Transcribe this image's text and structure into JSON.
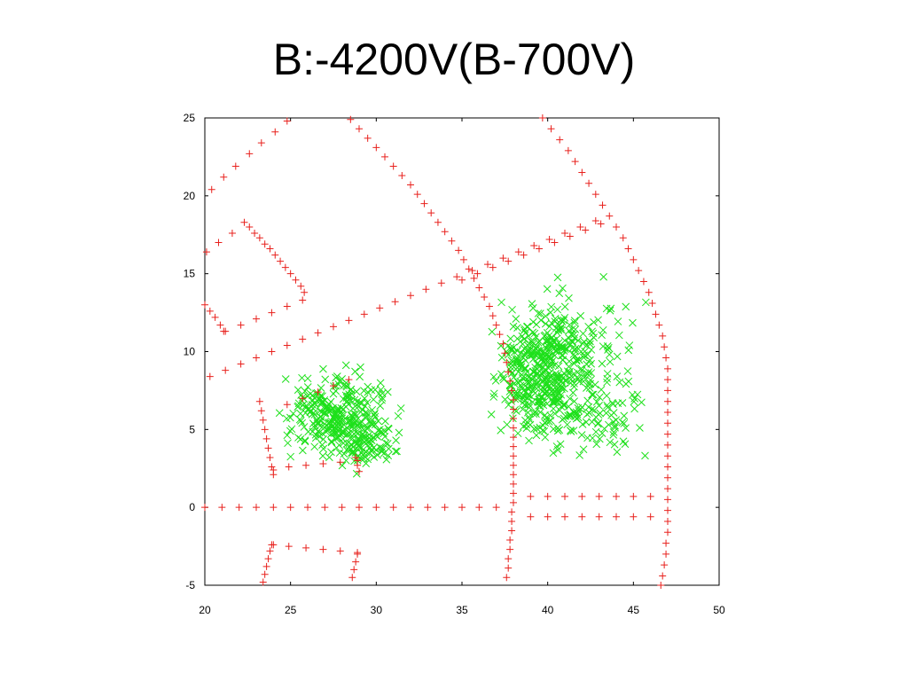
{
  "slide": {
    "title": "B:-4200V(B-700V)"
  },
  "chart_data": {
    "type": "scatter",
    "title": "",
    "xlabel": "",
    "ylabel": "",
    "xlim": [
      20,
      50
    ],
    "ylim": [
      -5,
      25
    ],
    "xticks": [
      "20",
      "25",
      "30",
      "35",
      "40",
      "45",
      "50"
    ],
    "yticks": [
      "-5",
      "0",
      "5",
      "10",
      "15",
      "20",
      "25"
    ],
    "grid": false,
    "legend": "none",
    "series": [
      {
        "marker": "plus",
        "color": "#e8201c",
        "points": [
          [
            20.4,
            20.4
          ],
          [
            21.1,
            21.2
          ],
          [
            21.8,
            21.9
          ],
          [
            22.6,
            22.7
          ],
          [
            23.3,
            23.4
          ],
          [
            24.1,
            24.1
          ],
          [
            24.8,
            24.8
          ],
          [
            20.1,
            16.4
          ],
          [
            20.8,
            17.0
          ],
          [
            21.6,
            17.6
          ],
          [
            22.3,
            18.3
          ],
          [
            22.6,
            18.0
          ],
          [
            22.9,
            17.6
          ],
          [
            23.2,
            17.3
          ],
          [
            23.5,
            16.9
          ],
          [
            23.8,
            16.6
          ],
          [
            24.1,
            16.2
          ],
          [
            24.4,
            15.8
          ],
          [
            24.7,
            15.4
          ],
          [
            25.0,
            15.0
          ],
          [
            25.3,
            14.6
          ],
          [
            25.6,
            14.2
          ],
          [
            25.8,
            13.8
          ],
          [
            20.0,
            13.0
          ],
          [
            20.3,
            12.6
          ],
          [
            20.6,
            12.2
          ],
          [
            20.9,
            11.7
          ],
          [
            21.1,
            11.3
          ],
          [
            20.3,
            8.4
          ],
          [
            21.2,
            8.8
          ],
          [
            22.1,
            9.2
          ],
          [
            23.0,
            9.6
          ],
          [
            23.9,
            10.0
          ],
          [
            24.8,
            10.4
          ],
          [
            25.7,
            10.8
          ],
          [
            26.6,
            11.2
          ],
          [
            27.5,
            11.6
          ],
          [
            28.4,
            12.0
          ],
          [
            29.3,
            12.4
          ],
          [
            30.2,
            12.8
          ],
          [
            31.1,
            13.2
          ],
          [
            32.0,
            13.6
          ],
          [
            32.9,
            14.0
          ],
          [
            33.8,
            14.4
          ],
          [
            34.7,
            14.8
          ],
          [
            35.6,
            15.2
          ],
          [
            36.5,
            15.6
          ],
          [
            37.4,
            16.0
          ],
          [
            38.3,
            16.4
          ],
          [
            39.2,
            16.8
          ],
          [
            40.1,
            17.2
          ],
          [
            41.0,
            17.6
          ],
          [
            41.9,
            18.0
          ],
          [
            42.8,
            18.4
          ],
          [
            21.2,
            11.3
          ],
          [
            22.1,
            11.7
          ],
          [
            23.0,
            12.1
          ],
          [
            23.9,
            12.5
          ],
          [
            24.8,
            12.9
          ],
          [
            25.7,
            13.3
          ],
          [
            35.0,
            14.6
          ],
          [
            35.9,
            15.0
          ],
          [
            36.8,
            15.4
          ],
          [
            37.7,
            15.8
          ],
          [
            38.6,
            16.2
          ],
          [
            39.5,
            16.6
          ],
          [
            40.4,
            17.0
          ],
          [
            41.3,
            17.4
          ],
          [
            42.2,
            17.8
          ],
          [
            43.1,
            18.2
          ],
          [
            24.8,
            6.6
          ],
          [
            25.7,
            7.0
          ],
          [
            26.6,
            7.4
          ],
          [
            27.5,
            7.8
          ],
          [
            28.4,
            8.2
          ],
          [
            24.0,
            2.4
          ],
          [
            24.9,
            2.6
          ],
          [
            25.9,
            2.7
          ],
          [
            26.9,
            2.8
          ],
          [
            27.9,
            2.9
          ],
          [
            28.9,
            3.0
          ],
          [
            23.2,
            6.8
          ],
          [
            23.3,
            6.2
          ],
          [
            23.4,
            5.6
          ],
          [
            23.5,
            5.0
          ],
          [
            23.6,
            4.4
          ],
          [
            23.7,
            3.8
          ],
          [
            23.8,
            3.2
          ],
          [
            23.9,
            2.6
          ],
          [
            24.0,
            2.1
          ],
          [
            28.8,
            3.2
          ],
          [
            28.9,
            2.7
          ],
          [
            29.0,
            2.3
          ],
          [
            20.0,
            0
          ],
          [
            21.0,
            0
          ],
          [
            22.0,
            0
          ],
          [
            23.0,
            0
          ],
          [
            24.0,
            0
          ],
          [
            25.0,
            0
          ],
          [
            26.0,
            0
          ],
          [
            27.0,
            0
          ],
          [
            28.0,
            0
          ],
          [
            29.0,
            0
          ],
          [
            30.0,
            0
          ],
          [
            31.0,
            0
          ],
          [
            32.0,
            0
          ],
          [
            33.0,
            0
          ],
          [
            34.0,
            0
          ],
          [
            35.0,
            0
          ],
          [
            36.0,
            0
          ],
          [
            37.0,
            0
          ],
          [
            39.0,
            0.7
          ],
          [
            40.0,
            0.7
          ],
          [
            41.0,
            0.7
          ],
          [
            42.0,
            0.7
          ],
          [
            43.0,
            0.7
          ],
          [
            44.0,
            0.7
          ],
          [
            45.0,
            0.7
          ],
          [
            46.0,
            0.7
          ],
          [
            39.0,
            -0.6
          ],
          [
            40.0,
            -0.6
          ],
          [
            41.0,
            -0.6
          ],
          [
            42.0,
            -0.6
          ],
          [
            43.0,
            -0.6
          ],
          [
            44.0,
            -0.6
          ],
          [
            45.0,
            -0.6
          ],
          [
            46.0,
            -0.6
          ],
          [
            24.0,
            -2.4
          ],
          [
            24.9,
            -2.5
          ],
          [
            25.9,
            -2.6
          ],
          [
            26.9,
            -2.7
          ],
          [
            27.9,
            -2.8
          ],
          [
            28.9,
            -2.9
          ],
          [
            23.4,
            -4.8
          ],
          [
            23.5,
            -4.3
          ],
          [
            23.6,
            -3.8
          ],
          [
            23.7,
            -3.3
          ],
          [
            23.8,
            -2.8
          ],
          [
            23.9,
            -2.4
          ],
          [
            28.6,
            -4.5
          ],
          [
            28.7,
            -4.0
          ],
          [
            28.8,
            -3.5
          ],
          [
            28.9,
            -3.0
          ],
          [
            28.5,
            24.9
          ],
          [
            29.0,
            24.3
          ],
          [
            29.5,
            23.7
          ],
          [
            30.0,
            23.1
          ],
          [
            30.5,
            22.5
          ],
          [
            31.0,
            21.9
          ],
          [
            31.5,
            21.3
          ],
          [
            32.0,
            20.7
          ],
          [
            32.4,
            20.1
          ],
          [
            32.8,
            19.5
          ],
          [
            33.2,
            18.9
          ],
          [
            33.6,
            18.3
          ],
          [
            34.0,
            17.7
          ],
          [
            34.4,
            17.1
          ],
          [
            34.8,
            16.5
          ],
          [
            35.1,
            15.9
          ],
          [
            35.4,
            15.3
          ],
          [
            35.7,
            14.7
          ],
          [
            36.0,
            14.1
          ],
          [
            36.3,
            13.5
          ],
          [
            36.6,
            12.9
          ],
          [
            36.8,
            12.3
          ],
          [
            37.0,
            11.7
          ],
          [
            37.2,
            11.1
          ],
          [
            37.4,
            10.5
          ],
          [
            37.5,
            9.9
          ],
          [
            37.6,
            9.3
          ],
          [
            37.7,
            8.7
          ],
          [
            37.8,
            8.1
          ],
          [
            37.9,
            7.5
          ],
          [
            38.0,
            6.9
          ],
          [
            38.0,
            6.3
          ],
          [
            38.0,
            5.7
          ],
          [
            38.0,
            5.1
          ],
          [
            38.0,
            4.5
          ],
          [
            38.0,
            3.9
          ],
          [
            38.0,
            3.3
          ],
          [
            38.0,
            2.7
          ],
          [
            38.0,
            2.1
          ],
          [
            38.0,
            1.5
          ],
          [
            38.0,
            0.9
          ],
          [
            38.0,
            0.3
          ],
          [
            37.9,
            -0.3
          ],
          [
            37.9,
            -0.9
          ],
          [
            37.9,
            -1.5
          ],
          [
            37.8,
            -2.1
          ],
          [
            37.8,
            -2.7
          ],
          [
            37.7,
            -3.3
          ],
          [
            37.7,
            -3.9
          ],
          [
            37.6,
            -4.5
          ],
          [
            39.7,
            25.0
          ],
          [
            40.2,
            24.3
          ],
          [
            40.7,
            23.6
          ],
          [
            41.2,
            22.9
          ],
          [
            41.6,
            22.2
          ],
          [
            42.0,
            21.5
          ],
          [
            42.4,
            20.8
          ],
          [
            42.8,
            20.1
          ],
          [
            43.2,
            19.4
          ],
          [
            43.6,
            18.7
          ],
          [
            44.0,
            18.0
          ],
          [
            44.4,
            17.3
          ],
          [
            44.7,
            16.6
          ],
          [
            45.0,
            15.9
          ],
          [
            45.3,
            15.2
          ],
          [
            45.6,
            14.5
          ],
          [
            45.9,
            13.8
          ],
          [
            46.1,
            13.1
          ],
          [
            46.3,
            12.4
          ],
          [
            46.5,
            11.7
          ],
          [
            46.7,
            11.0
          ],
          [
            46.8,
            10.3
          ],
          [
            46.9,
            9.6
          ],
          [
            47.0,
            8.9
          ],
          [
            47.0,
            8.2
          ],
          [
            47.0,
            7.5
          ],
          [
            47.0,
            6.8
          ],
          [
            47.0,
            6.1
          ],
          [
            47.0,
            5.4
          ],
          [
            47.0,
            4.7
          ],
          [
            47.0,
            4.0
          ],
          [
            47.0,
            3.3
          ],
          [
            47.0,
            2.6
          ],
          [
            47.0,
            1.9
          ],
          [
            47.0,
            1.2
          ],
          [
            47.0,
            0.5
          ],
          [
            47.0,
            -0.2
          ],
          [
            47.0,
            -0.9
          ],
          [
            47.0,
            -1.6
          ],
          [
            46.9,
            -2.3
          ],
          [
            46.9,
            -3.0
          ],
          [
            46.8,
            -3.7
          ],
          [
            46.7,
            -4.4
          ],
          [
            46.6,
            -5.0
          ]
        ]
      },
      {
        "marker": "cross",
        "color": "#1ee01b",
        "clusters": [
          {
            "center": [
              27.8,
              5.8
            ],
            "spread": [
              1.4,
              1.3
            ],
            "count": 320
          },
          {
            "center": [
              29.5,
              3.9
            ],
            "spread": [
              0.7,
              0.5
            ],
            "count": 50
          },
          {
            "center": [
              39.3,
              8.6
            ],
            "spread": [
              1.1,
              1.8
            ],
            "count": 320
          },
          {
            "center": [
              41.4,
              8.8
            ],
            "spread": [
              1.6,
              2.3
            ],
            "count": 260
          },
          {
            "center": [
              43.3,
              6.0
            ],
            "spread": [
              1.2,
              1.4
            ],
            "count": 40
          }
        ]
      }
    ]
  }
}
